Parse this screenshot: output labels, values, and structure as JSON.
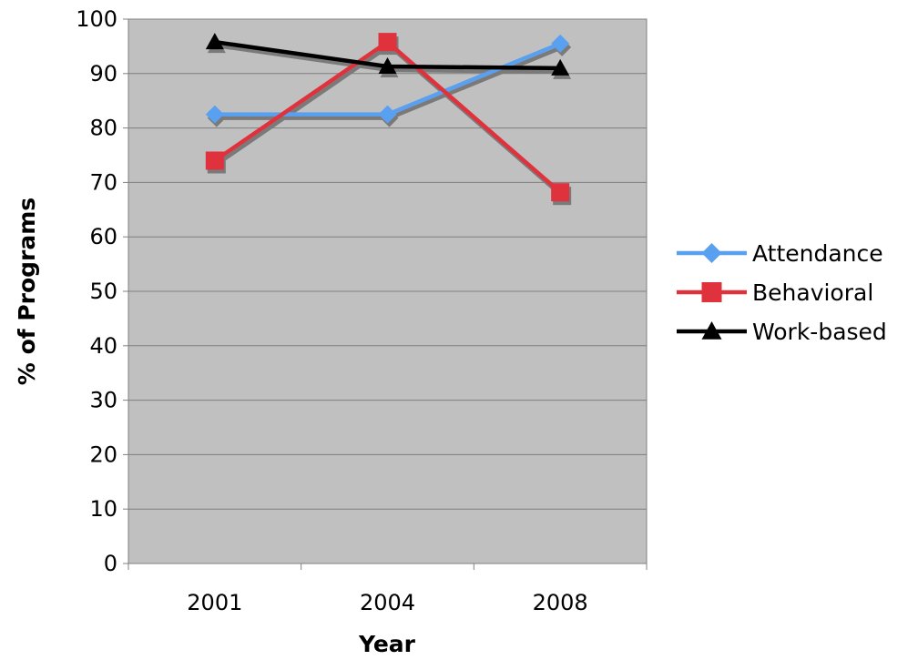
{
  "chart_data": {
    "type": "line",
    "title": "",
    "xlabel": "Year",
    "ylabel": "% of Programs",
    "categories": [
      "2001",
      "2004",
      "2008"
    ],
    "ylim": [
      0,
      100
    ],
    "yticks": [
      0,
      10,
      20,
      30,
      40,
      50,
      60,
      70,
      80,
      90,
      100
    ],
    "grid": true,
    "legend_position": "right",
    "plot_background": "#c0c0c0",
    "series": [
      {
        "name": "Attendance",
        "values": [
          82.5,
          82.5,
          95.5
        ],
        "color": "#5aa0f0",
        "marker": "diamond"
      },
      {
        "name": "Behavioral",
        "values": [
          74,
          95.8,
          68.2
        ],
        "color": "#e0323c",
        "marker": "square"
      },
      {
        "name": "Work-based",
        "values": [
          95.8,
          91.3,
          91
        ],
        "color": "#000000",
        "marker": "triangle"
      }
    ]
  }
}
